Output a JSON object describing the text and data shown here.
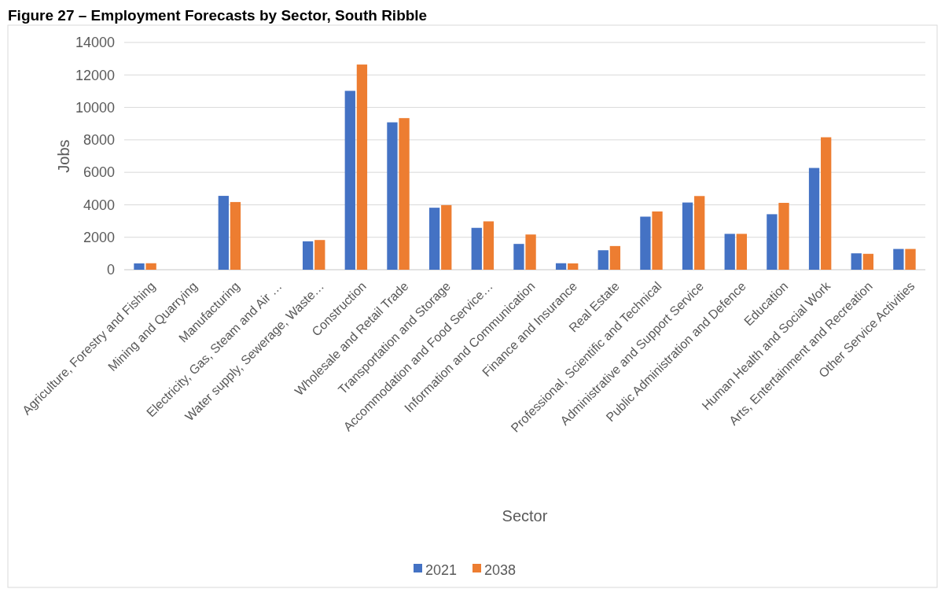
{
  "chart_data": {
    "type": "bar",
    "title": "Figure 27 – Employment Forecasts by Sector, South Ribble",
    "xlabel": "Sector",
    "ylabel": "Jobs",
    "categories": [
      "Agriculture, Forestry and Fishing",
      "Mining and Quarrying",
      "Manufacturing",
      "Electricity, Gas, Steam and Air …",
      "Water supply, Sewerage, Waste…",
      "Construction",
      "Wholesale and Retail Trade",
      "Transportation and Storage",
      "Accommodation and Food Service…",
      "Information and Communication",
      "Finance and Insurance",
      "Real Estate",
      "Professional, Scientific and Technical",
      "Administrative and Support Service",
      "Public Administration and Defence",
      "Education",
      "Human Health and Social Work",
      "Arts, Entertainment and Recreation",
      "Other Service Activities"
    ],
    "series": [
      {
        "name": "2021",
        "color": "#4472c4",
        "values": [
          390,
          0,
          4550,
          null,
          1750,
          11020,
          9080,
          3820,
          2580,
          1590,
          400,
          1200,
          3270,
          4140,
          2210,
          3420,
          6270,
          1010,
          1280
        ]
      },
      {
        "name": "2038",
        "color": "#ed7d31",
        "values": [
          400,
          0,
          4170,
          null,
          1830,
          12640,
          9340,
          3980,
          2980,
          2170,
          390,
          1460,
          3590,
          4540,
          2210,
          4120,
          8160,
          980,
          1280
        ]
      }
    ],
    "ylim": [
      0,
      14000
    ],
    "yticks": [
      0,
      2000,
      4000,
      6000,
      8000,
      10000,
      12000,
      14000
    ],
    "grid": "y",
    "legend": "bottom"
  }
}
